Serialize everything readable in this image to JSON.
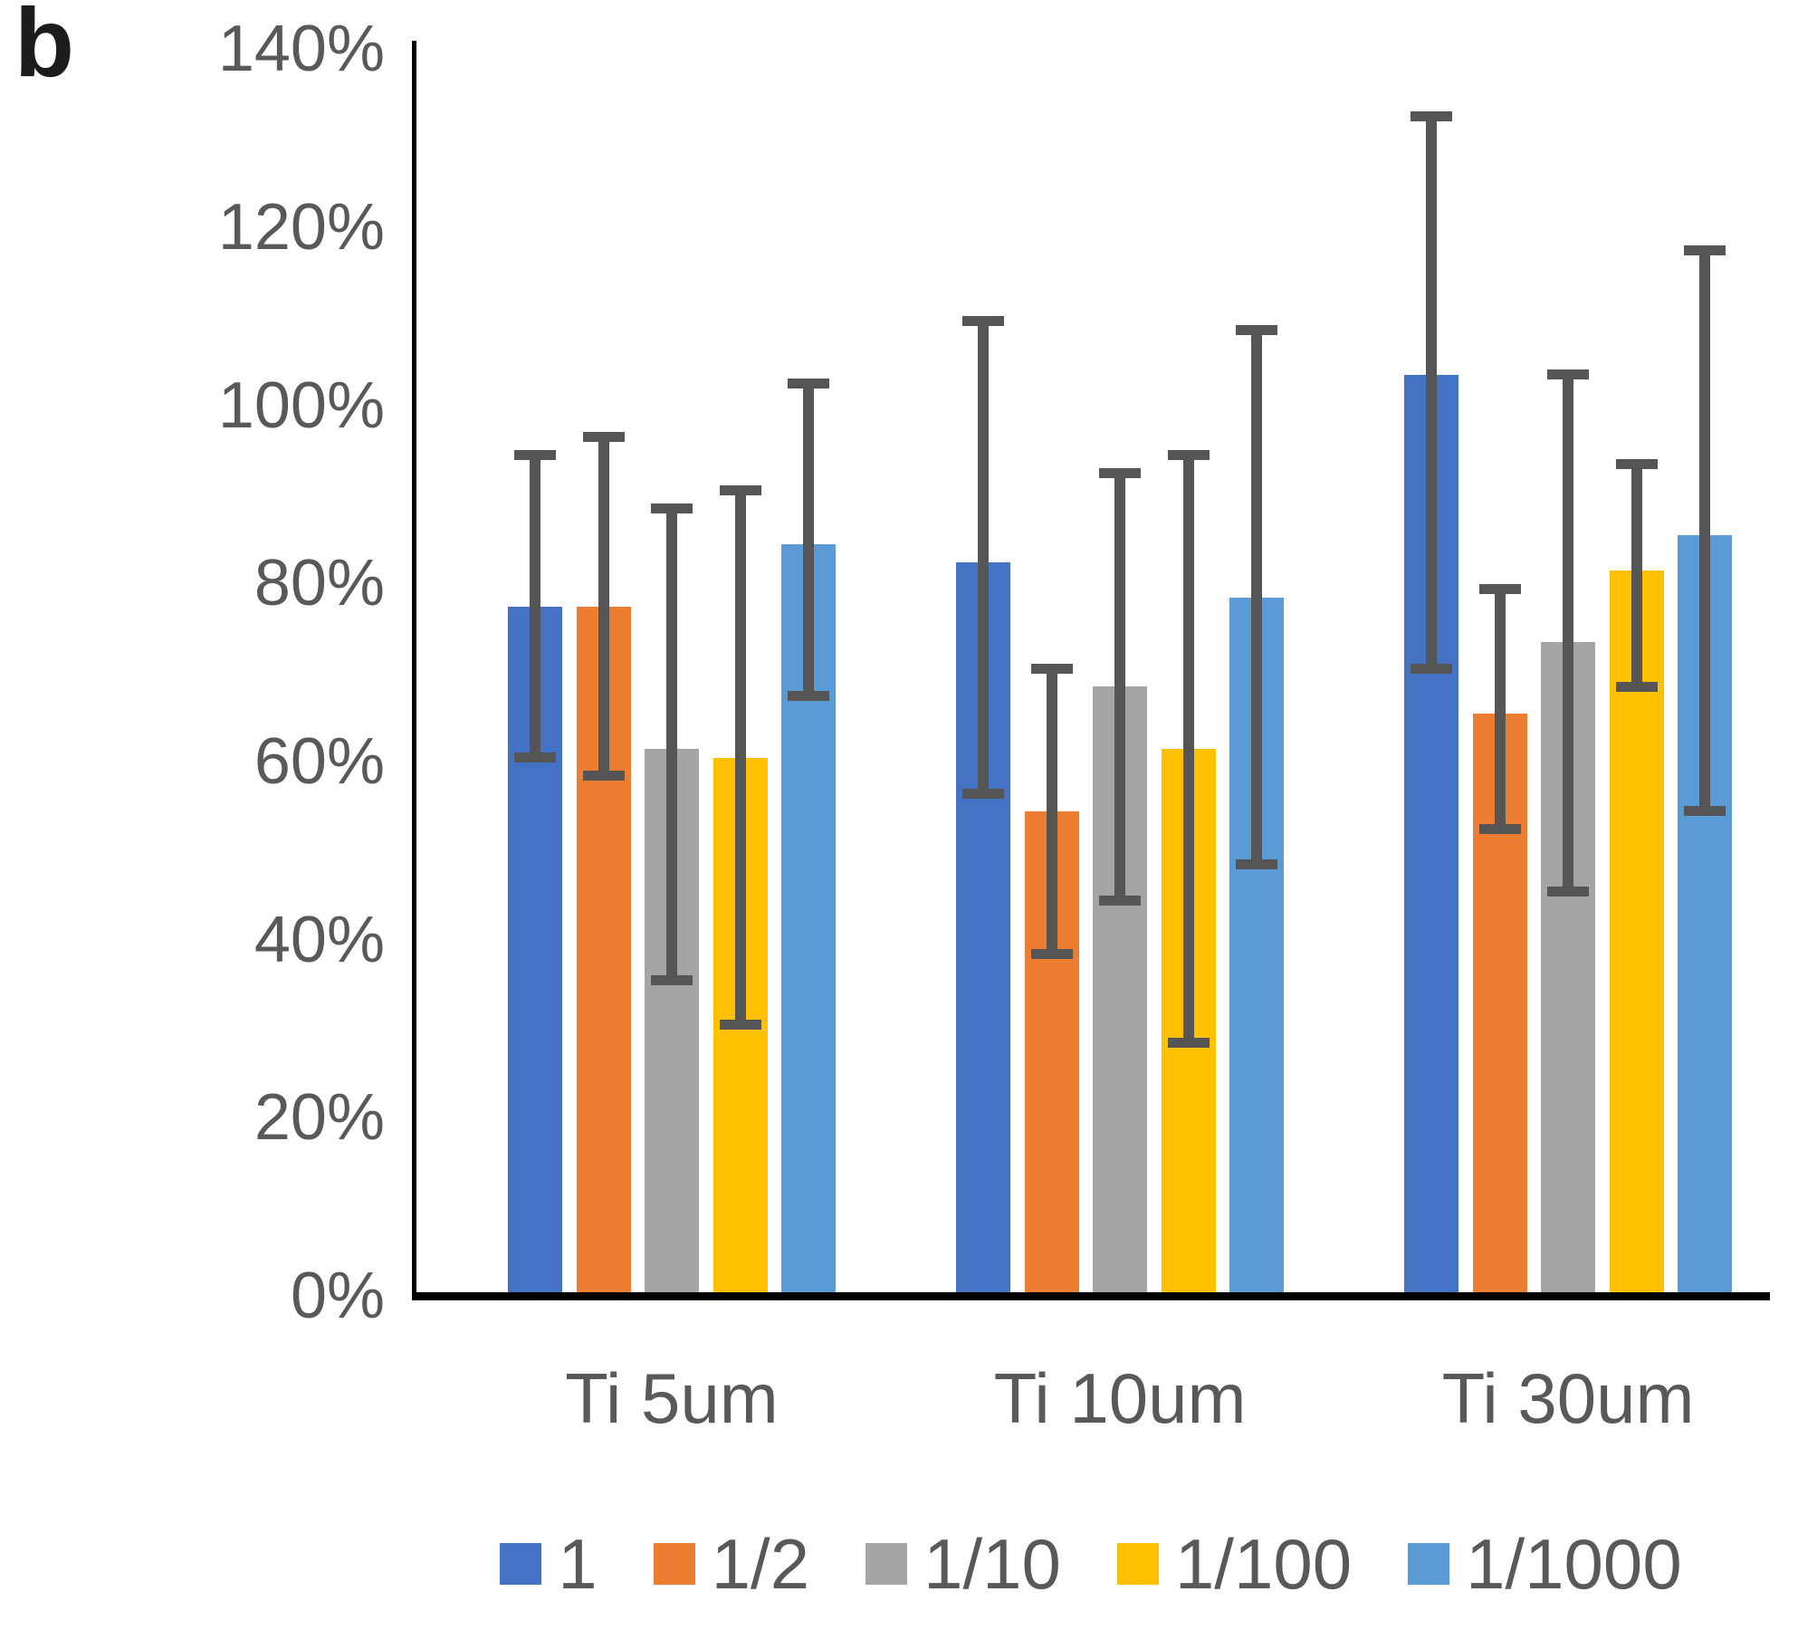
{
  "panel_label": "b",
  "chart_data": {
    "type": "bar",
    "title": "",
    "xlabel": "",
    "ylabel": "",
    "categories": [
      "Ti 5um",
      "Ti 10um",
      "Ti 30um"
    ],
    "series": [
      {
        "name": "1",
        "color": "#4472C4",
        "values": [
          77,
          82,
          103
        ],
        "err_hi": [
          94,
          109,
          132
        ],
        "err_lo": [
          60,
          56,
          70
        ]
      },
      {
        "name": "1/2",
        "color": "#ED7D31",
        "values": [
          77,
          54,
          65
        ],
        "err_hi": [
          96,
          70,
          79
        ],
        "err_lo": [
          58,
          38,
          52
        ]
      },
      {
        "name": "1/10",
        "color": "#A5A5A5",
        "values": [
          61,
          68,
          73
        ],
        "err_hi": [
          88,
          92,
          103
        ],
        "err_lo": [
          35,
          44,
          45
        ]
      },
      {
        "name": "1/100",
        "color": "#FFC000",
        "values": [
          60,
          61,
          81
        ],
        "err_hi": [
          90,
          94,
          93
        ],
        "err_lo": [
          30,
          28,
          68
        ]
      },
      {
        "name": "1/1000",
        "color": "#5B9BD5",
        "values": [
          84,
          78,
          85
        ],
        "err_hi": [
          102,
          108,
          117
        ],
        "err_lo": [
          67,
          48,
          54
        ]
      }
    ],
    "y_ticks": [
      "0%",
      "20%",
      "40%",
      "60%",
      "80%",
      "100%",
      "120%",
      "140%"
    ],
    "ylim": [
      0,
      140
    ],
    "y_tick_step": 20,
    "grid": false,
    "legend_position": "bottom",
    "error_bars": true,
    "error_bar_color": "#555555",
    "axis_color": "#000000",
    "label_color": "#595959"
  }
}
